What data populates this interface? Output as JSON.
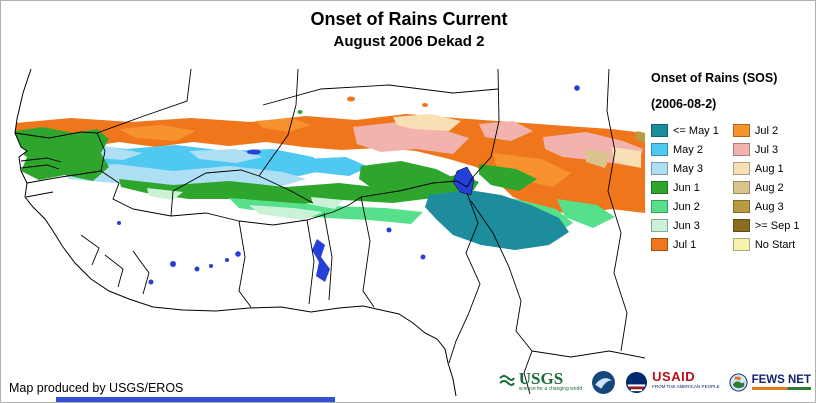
{
  "page": {
    "title": "Onset of Rains Current",
    "subtitle": "August 2006 Dekad 2",
    "attribution": "Map produced by USGS/EROS"
  },
  "legend": {
    "title": "Onset of Rains (SOS)",
    "date": "(2006-08-2)",
    "columns": [
      [
        {
          "label": "<= May 1",
          "color": "#1D8C9C"
        },
        {
          "label": "May 2",
          "color": "#4FC9F2"
        },
        {
          "label": "May 3",
          "color": "#AEDFF5"
        },
        {
          "label": "Jun 1",
          "color": "#2EA62E"
        },
        {
          "label": "Jun 2",
          "color": "#57E08C"
        },
        {
          "label": "Jun 3",
          "color": "#C9F2D6"
        },
        {
          "label": "Jul 1",
          "color": "#F0761B"
        }
      ],
      [
        {
          "label": "Jul 2",
          "color": "#F7922F"
        },
        {
          "label": "Jul 3",
          "color": "#F2B3AE"
        },
        {
          "label": "Aug 1",
          "color": "#F8DFB5"
        },
        {
          "label": "Aug 2",
          "color": "#DAC38C"
        },
        {
          "label": "Aug 3",
          "color": "#BA9A42"
        },
        {
          "label": ">= Sep 1",
          "color": "#8A6D1F"
        },
        {
          "label": "No Start",
          "color": "#F7F2AD"
        }
      ]
    ]
  },
  "map": {
    "water_color": "#2440D8"
  },
  "colors": {
    "bottom_bar": "#3350D0"
  },
  "logos": {
    "usgs": {
      "text": "USGS",
      "tagline": "science for a changing world"
    },
    "usaid": {
      "text": "USAID",
      "tagline": "FROM THE AMERICAN PEOPLE"
    },
    "fewsnet": {
      "text": "FEWS NET"
    }
  }
}
